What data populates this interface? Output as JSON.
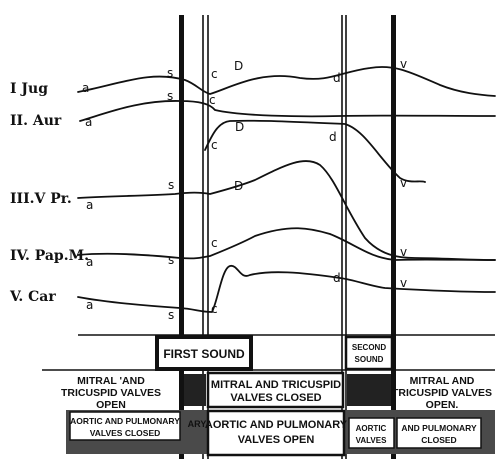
{
  "rows": [
    {
      "label": "I Jug"
    },
    {
      "label": "II. Aur"
    },
    {
      "label": "III.V Pr."
    },
    {
      "label": "IV. Pap.M."
    },
    {
      "label": "V. Car"
    }
  ],
  "point_labels": {
    "jug": [
      "a",
      "s",
      "c",
      "D",
      "d",
      "v"
    ],
    "aur": [
      "a",
      "s",
      "c",
      "D",
      "d"
    ],
    "vpr": [
      "a",
      "s",
      "c",
      "D",
      "v"
    ],
    "pap": [
      "a",
      "s",
      "c",
      "v"
    ],
    "car": [
      "a",
      "s",
      "c",
      "d",
      "v"
    ]
  },
  "sounds": {
    "first": "FIRST SOUND",
    "second_line1": "SECOND",
    "second_line2": "SOUND"
  },
  "av_open_left": {
    "line1": "MITRAL 'AND",
    "line2": "TRICUSPID VALVES",
    "line3": "OPEN"
  },
  "av_closed": {
    "line1": "MITRAL AND TRICUSPID",
    "line2": "VALVES CLOSED"
  },
  "av_open_right": {
    "line1": "MITRAL AND",
    "line2": "TRICUSPID VALVES",
    "line3": "OPEN."
  },
  "semi_closed_left": {
    "line1": "AORTIC AND PULMONARY",
    "line2": "VALVES CLOSED"
  },
  "semi_closed_left_fragment": "ARY",
  "semi_open": {
    "line1": "AORTIC AND PULMONARY",
    "line2": "VALVES OPEN"
  },
  "semi_closed_right_aortic": "AORTIC",
  "semi_closed_right_aortic2": "VALVES",
  "semi_closed_right_pul": "AND PULMONARY",
  "semi_closed_right_pul2": "CLOSED"
}
